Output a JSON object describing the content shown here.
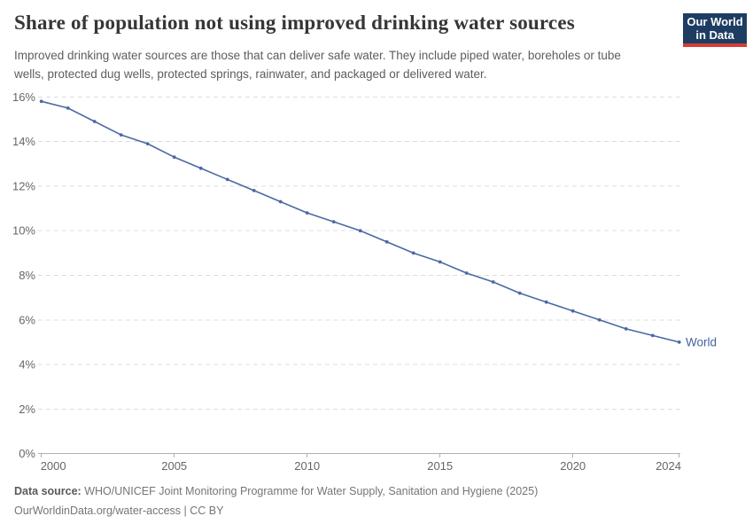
{
  "header": {
    "logo_line1": "Our World",
    "logo_line2": "in Data"
  },
  "chart_data": {
    "type": "line",
    "title": "Share of population not using improved drinking water sources",
    "subtitle": "Improved drinking water sources are those that can deliver safe water. They include piped water, boreholes or tube wells, protected dug wells, protected springs, rainwater, and packaged or delivered water.",
    "x": [
      2000,
      2001,
      2002,
      2003,
      2004,
      2005,
      2006,
      2007,
      2008,
      2009,
      2010,
      2011,
      2012,
      2013,
      2014,
      2015,
      2016,
      2017,
      2018,
      2019,
      2020,
      2021,
      2022,
      2023,
      2024
    ],
    "series": [
      {
        "name": "World",
        "values": [
          15.8,
          15.5,
          14.9,
          14.3,
          13.9,
          13.3,
          12.8,
          12.3,
          11.8,
          11.3,
          10.8,
          10.4,
          10,
          9.5,
          9,
          8.6,
          8.1,
          7.7,
          7.2,
          6.8,
          6.4,
          6,
          5.6,
          5.3,
          5
        ]
      }
    ],
    "xlim": [
      2000,
      2024
    ],
    "ylim": [
      0,
      16
    ],
    "x_ticks": [
      2000,
      2005,
      2010,
      2015,
      2020,
      2024
    ],
    "y_ticks": [
      0,
      2,
      4,
      6,
      8,
      10,
      12,
      14,
      16
    ],
    "y_tick_suffix": "%",
    "xlabel": "",
    "ylabel": "",
    "grid": "horizontal-dashed",
    "legend_position": "end-of-line-label"
  },
  "footer": {
    "datasource_label": "Data source:",
    "datasource_text": "WHO/UNICEF Joint Monitoring Programme for Water Supply, Sanitation and Hygiene (2025)",
    "license_line": "OurWorldinData.org/water-access | CC BY"
  },
  "colors": {
    "line": "#4b69a3",
    "series_label": "#44639f",
    "grid": "#dcdcdc",
    "axis": "#b0b0b0",
    "tick_label": "#666666",
    "title_text": "#363636",
    "subtitle_text": "#5d5d5d",
    "footer_text": "#757575",
    "logo_bg": "#1d3d63",
    "logo_stripe": "#d73c34"
  }
}
